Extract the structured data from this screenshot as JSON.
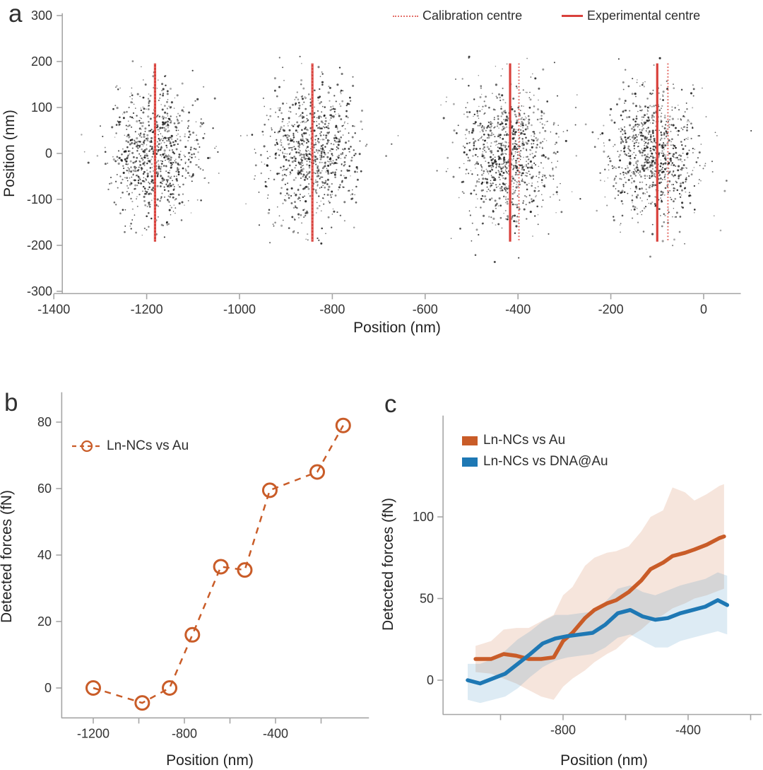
{
  "panels": {
    "a": {
      "label": "a"
    },
    "b": {
      "label": "b"
    },
    "c": {
      "label": "c"
    }
  },
  "colors": {
    "red_solid": "#d9413c",
    "red_dotted": "#e4716b",
    "orange": "#c95c28",
    "blue": "#1e78b4",
    "orange_band": "rgba(201,92,40,0.16)",
    "blue_band": "rgba(30,120,180,0.15)",
    "scatter_dot": "#161616",
    "axis": "#a6a6a6",
    "tick_text": "#333333",
    "label_text": "#222222"
  },
  "chart_data": [
    {
      "panel": "a",
      "type": "scatter",
      "xlabel": "Position (nm)",
      "ylabel": "Position (nm)",
      "xlim": [
        -1400,
        80
      ],
      "ylim": [
        -305,
        305
      ],
      "xticks": [
        -1400,
        -1200,
        -1000,
        -800,
        -600,
        -400,
        -200,
        0
      ],
      "yticks": [
        300,
        200,
        100,
        0,
        -100,
        -200,
        -300
      ],
      "legend": [
        {
          "label": "Calibration centre",
          "style": "dotted-line"
        },
        {
          "label": "Experimental centre",
          "style": "solid-line"
        }
      ],
      "centre_line_y_span": [
        -192,
        196
      ],
      "clusters": [
        {
          "center_x": -1183,
          "center_y": 0,
          "sigma_x": 48,
          "sigma_y": 72,
          "n_points": 850,
          "experimental_centre": -1182,
          "calibration_centre": -1182
        },
        {
          "center_x": -844,
          "center_y": 0,
          "sigma_x": 50,
          "sigma_y": 72,
          "n_points": 850,
          "experimental_centre": -843,
          "calibration_centre": -843
        },
        {
          "center_x": -423,
          "center_y": 0,
          "sigma_x": 52,
          "sigma_y": 75,
          "n_points": 900,
          "experimental_centre": -417,
          "calibration_centre": -398
        },
        {
          "center_x": -108,
          "center_y": 0,
          "sigma_x": 50,
          "sigma_y": 72,
          "n_points": 850,
          "experimental_centre": -100,
          "calibration_centre": -77
        }
      ]
    },
    {
      "panel": "b",
      "type": "line",
      "xlabel": "Position (nm)",
      "ylabel": "Detected forces (fN)",
      "xlim": [
        -1340,
        10
      ],
      "ylim": [
        -9,
        89
      ],
      "xticks": [
        -1200,
        -1000,
        -800,
        -600,
        -400,
        -200
      ],
      "xtick_labels": [
        -1200,
        -800,
        -400
      ],
      "yticks": [
        0,
        20,
        40,
        60,
        80
      ],
      "legend_position": "upper left",
      "series": [
        {
          "name": "Ln-NCs vs Au",
          "style": "dashed-open-circles",
          "x": [
            -1200,
            -985,
            -865,
            -765,
            -640,
            -535,
            -425,
            -217,
            -103
          ],
          "y": [
            0,
            -4.5,
            0,
            16,
            36.5,
            35.5,
            59.5,
            65,
            79
          ]
        }
      ]
    },
    {
      "panel": "c",
      "type": "line-band",
      "xlabel": "Position (nm)",
      "ylabel": "Detected forces (fN)",
      "xlim": [
        -1185,
        -165
      ],
      "ylim": [
        -21,
        162
      ],
      "xticks": [
        -1000,
        -800,
        -600,
        -400,
        -200
      ],
      "xtick_labels": [
        -800,
        -400
      ],
      "yticks": [
        0,
        50,
        100
      ],
      "legend_position": "upper left",
      "series": [
        {
          "name": "Ln-NCs vs Au",
          "x": [
            -1080,
            -1030,
            -990,
            -950,
            -910,
            -870,
            -830,
            -800,
            -770,
            -730,
            -700,
            -660,
            -630,
            -590,
            -550,
            -520,
            -480,
            -450,
            -410,
            -380,
            -340,
            -300,
            -285
          ],
          "y": [
            13,
            13,
            16,
            15,
            13,
            13,
            14,
            24,
            29,
            38,
            43,
            47,
            49,
            54,
            61,
            68,
            72,
            76,
            78,
            80,
            83,
            87,
            88
          ],
          "band_lower": [
            5,
            4,
            1,
            -2,
            -6,
            -10,
            -12,
            -4,
            1,
            6,
            11,
            16,
            19,
            26,
            31,
            36,
            40,
            44,
            47,
            50,
            52,
            55,
            56
          ],
          "band_upper": [
            21,
            24,
            31,
            32,
            32,
            36,
            40,
            52,
            57,
            70,
            75,
            78,
            79,
            82,
            91,
            100,
            104,
            118,
            115,
            110,
            114,
            119,
            120
          ]
        },
        {
          "name": "Ln-NCs vs DNA@Au",
          "x": [
            -1105,
            -1065,
            -1025,
            -985,
            -945,
            -905,
            -865,
            -825,
            -785,
            -745,
            -705,
            -665,
            -625,
            -585,
            -545,
            -505,
            -465,
            -425,
            -385,
            -345,
            -305,
            -275
          ],
          "y": [
            0,
            -2,
            1,
            4,
            10,
            16,
            22.5,
            25.5,
            27,
            28,
            29,
            34,
            41,
            43,
            39,
            37,
            38,
            41,
            43,
            45,
            49,
            46
          ],
          "band_lower": [
            -12,
            -14,
            -12,
            -10,
            -5,
            2,
            8,
            12,
            14,
            15,
            16,
            20,
            26,
            28,
            24,
            20,
            20,
            24,
            26,
            28,
            30,
            28
          ],
          "band_upper": [
            10,
            10,
            13,
            18,
            25,
            30,
            36,
            40,
            40,
            41,
            42,
            48,
            56,
            58,
            54,
            52,
            55,
            58,
            60,
            62,
            66,
            64
          ]
        }
      ]
    }
  ]
}
